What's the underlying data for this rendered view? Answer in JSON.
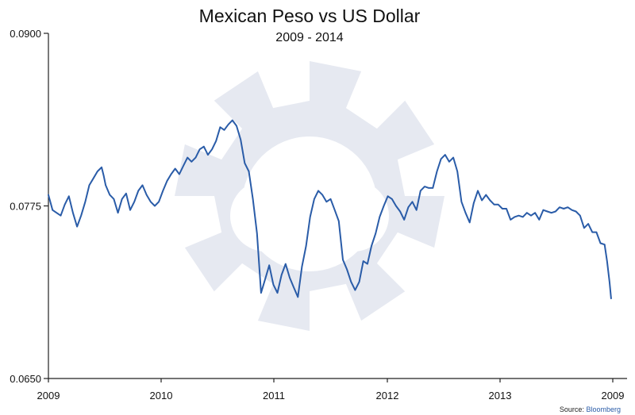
{
  "colors": {
    "series": "#2a5ca8",
    "axis": "#222222",
    "watermark": "#e6e9f1"
  },
  "chart_data": {
    "type": "line",
    "title": "Mexican Peso vs US Dollar",
    "subtitle": "2009 - 2014",
    "xlabel": "",
    "ylabel": "",
    "ylim": [
      0.065,
      0.09
    ],
    "y_ticks": [
      "0.0900",
      "0.0775",
      "0.0650"
    ],
    "y_tick_values": [
      0.09,
      0.0775,
      0.065
    ],
    "x_ticks": [
      "2009",
      "2010",
      "2011",
      "2012",
      "2013",
      "2009"
    ],
    "grid": false,
    "source_label": "Source:",
    "source_name": "Bloomberg",
    "series": [
      {
        "points": [
          [
            0,
            0.0783
          ],
          [
            1,
            0.0772
          ],
          [
            2,
            0.077
          ],
          [
            3,
            0.0768
          ],
          [
            4,
            0.0776
          ],
          [
            5,
            0.0782
          ],
          [
            6,
            0.077
          ],
          [
            7,
            0.076
          ],
          [
            8,
            0.0768
          ],
          [
            9,
            0.0778
          ],
          [
            10,
            0.079
          ],
          [
            11,
            0.0795
          ],
          [
            12,
            0.08
          ],
          [
            13,
            0.0803
          ],
          [
            13.5,
            0.0797
          ],
          [
            14,
            0.079
          ],
          [
            15,
            0.0783
          ],
          [
            16,
            0.078
          ],
          [
            17,
            0.077
          ],
          [
            18,
            0.078
          ],
          [
            19,
            0.0784
          ],
          [
            20,
            0.0772
          ],
          [
            21,
            0.0778
          ],
          [
            22,
            0.0786
          ],
          [
            23,
            0.079
          ],
          [
            24,
            0.0783
          ],
          [
            25,
            0.0778
          ],
          [
            26,
            0.0775
          ],
          [
            27,
            0.0778
          ],
          [
            28,
            0.0786
          ],
          [
            29,
            0.0793
          ],
          [
            30,
            0.0798
          ],
          [
            31,
            0.0802
          ],
          [
            32,
            0.0798
          ],
          [
            33,
            0.0804
          ],
          [
            34,
            0.081
          ],
          [
            35,
            0.0807
          ],
          [
            36,
            0.081
          ],
          [
            37,
            0.0816
          ],
          [
            38,
            0.0818
          ],
          [
            39,
            0.0812
          ],
          [
            40,
            0.0816
          ],
          [
            41,
            0.0822
          ],
          [
            42,
            0.0832
          ],
          [
            43,
            0.083
          ],
          [
            44,
            0.0834
          ],
          [
            45,
            0.0837
          ],
          [
            46,
            0.0833
          ],
          [
            47,
            0.0823
          ],
          [
            48,
            0.0806
          ],
          [
            49,
            0.08
          ],
          [
            50,
            0.078
          ],
          [
            51,
            0.0755
          ],
          [
            52,
            0.0712
          ],
          [
            53,
            0.0722
          ],
          [
            54,
            0.0732
          ],
          [
            55,
            0.0718
          ],
          [
            56,
            0.0712
          ],
          [
            57,
            0.0725
          ],
          [
            58,
            0.0733
          ],
          [
            59,
            0.0723
          ],
          [
            60,
            0.0716
          ],
          [
            61,
            0.0709
          ],
          [
            62,
            0.0731
          ],
          [
            63,
            0.0746
          ],
          [
            64,
            0.0767
          ],
          [
            65,
            0.078
          ],
          [
            66,
            0.0786
          ],
          [
            67,
            0.0783
          ],
          [
            68,
            0.0778
          ],
          [
            69,
            0.078
          ],
          [
            70,
            0.0772
          ],
          [
            71,
            0.0764
          ],
          [
            72,
            0.0736
          ],
          [
            73,
            0.0729
          ],
          [
            74,
            0.072
          ],
          [
            75,
            0.0714
          ],
          [
            76,
            0.072
          ],
          [
            77,
            0.0735
          ],
          [
            78,
            0.0733
          ],
          [
            79,
            0.0746
          ],
          [
            80,
            0.0755
          ],
          [
            81,
            0.0767
          ],
          [
            82,
            0.0775
          ],
          [
            83,
            0.0782
          ],
          [
            84,
            0.078
          ],
          [
            85,
            0.0775
          ],
          [
            86,
            0.0771
          ],
          [
            87,
            0.0765
          ],
          [
            88,
            0.0774
          ],
          [
            89,
            0.0778
          ],
          [
            90,
            0.0772
          ],
          [
            91,
            0.0786
          ],
          [
            92,
            0.0789
          ],
          [
            93,
            0.0788
          ],
          [
            94,
            0.0788
          ],
          [
            95,
            0.08
          ],
          [
            96,
            0.0809
          ],
          [
            97,
            0.0812
          ],
          [
            98,
            0.0807
          ],
          [
            99,
            0.081
          ],
          [
            100,
            0.08
          ],
          [
            101,
            0.0778
          ],
          [
            102,
            0.077
          ],
          [
            103,
            0.0763
          ],
          [
            104,
            0.0777
          ],
          [
            105,
            0.0786
          ],
          [
            106,
            0.0779
          ],
          [
            107,
            0.0783
          ],
          [
            108,
            0.0779
          ],
          [
            109,
            0.0776
          ],
          [
            110,
            0.0776
          ],
          [
            111,
            0.0773
          ],
          [
            112,
            0.0773
          ],
          [
            113,
            0.0765
          ],
          [
            114,
            0.0767
          ],
          [
            115,
            0.0768
          ],
          [
            116,
            0.0767
          ],
          [
            117,
            0.077
          ],
          [
            118,
            0.0768
          ],
          [
            119,
            0.077
          ],
          [
            120,
            0.0765
          ],
          [
            121,
            0.0772
          ],
          [
            122,
            0.0771
          ],
          [
            123,
            0.077
          ],
          [
            124,
            0.0771
          ],
          [
            125,
            0.0774
          ],
          [
            126,
            0.0773
          ],
          [
            127,
            0.0774
          ],
          [
            128,
            0.0772
          ],
          [
            129,
            0.0771
          ],
          [
            130,
            0.0768
          ],
          [
            131,
            0.0759
          ],
          [
            132,
            0.0762
          ],
          [
            133,
            0.0756
          ],
          [
            134,
            0.0756
          ],
          [
            135,
            0.0748
          ],
          [
            136,
            0.0747
          ],
          [
            136.6,
            0.0735
          ],
          [
            137.2,
            0.072
          ],
          [
            137.6,
            0.0708
          ]
        ]
      }
    ]
  }
}
